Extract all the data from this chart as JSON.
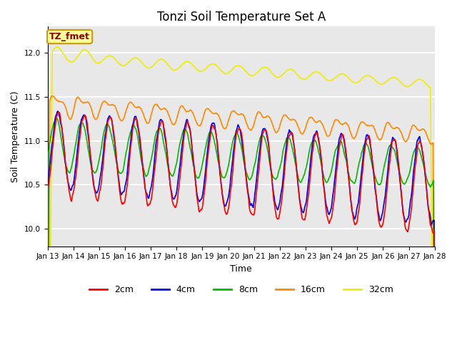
{
  "title": "Tonzi Soil Temperature Set A",
  "xlabel": "Time",
  "ylabel": "Soil Temperature (C)",
  "ylim": [
    9.8,
    12.3
  ],
  "tick_labels": [
    "Jan 13",
    "Jan 14",
    "Jan 15",
    "Jan 16",
    "Jan 17",
    "Jan 18",
    "Jan 19",
    "Jan 20",
    "Jan 21",
    "Jan 22",
    "Jan 23",
    "Jan 24",
    "Jan 25",
    "Jan 26",
    "Jan 27",
    "Jan 28"
  ],
  "legend_label": "TZ_fmet",
  "legend_bbox_facecolor": "#ffff99",
  "legend_bbox_edgecolor": "#cc9900",
  "legend_text_color": "#880000",
  "series": {
    "2cm": {
      "color": "#ff0000",
      "lw": 1.2
    },
    "4cm": {
      "color": "#0000ee",
      "lw": 1.2
    },
    "8cm": {
      "color": "#00bb00",
      "lw": 1.2
    },
    "16cm": {
      "color": "#ff8800",
      "lw": 1.2
    },
    "32cm": {
      "color": "#eeee00",
      "lw": 1.2
    }
  },
  "bg_color": "#e8e8e8",
  "grid_color": "#ffffff",
  "title_fontsize": 12,
  "axis_label_fontsize": 9,
  "tick_fontsize": 7.5,
  "legend_fontsize": 9
}
